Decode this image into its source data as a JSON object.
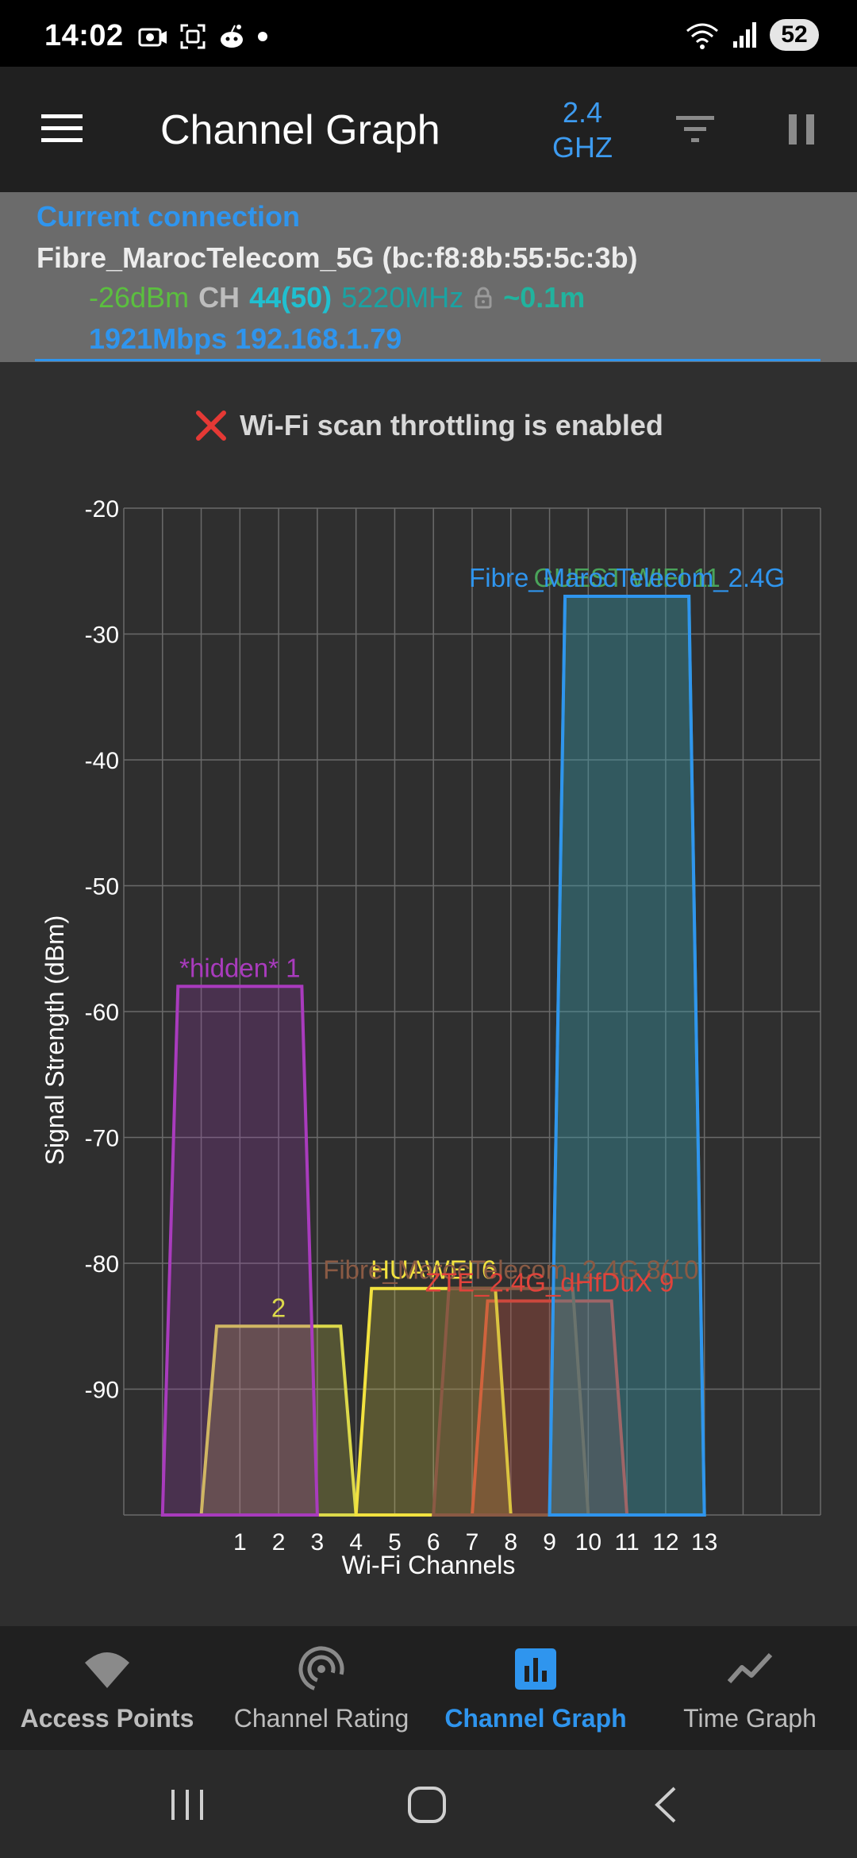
{
  "status_bar": {
    "time": "14:02",
    "battery": "52",
    "left_icons": [
      "camera-icon",
      "screenshot-icon",
      "reddit-icon",
      "dot-icon"
    ],
    "right_icons": [
      "wifi-icon",
      "signal-icon"
    ]
  },
  "app_bar": {
    "title": "Channel Graph",
    "band_line1": "2.4",
    "band_line2": "GHZ",
    "icons": [
      "menu-icon",
      "filter-icon",
      "pause-icon"
    ]
  },
  "current_connection": {
    "heading": "Current connection",
    "ssid_line": "Fibre_MarocTelecom_5G (bc:f8:8b:55:5c:3b)",
    "signal": "-26dBm",
    "ch_label": "CH",
    "channel": "44(50)",
    "frequency": "5220MHz",
    "distance": "~0.1m",
    "rate_ip": "1921Mbps 192.168.1.79"
  },
  "notice": {
    "text": "Wi-Fi scan throttling is enabled"
  },
  "chart_data": {
    "type": "area",
    "xlabel": "Wi-Fi Channels",
    "ylabel": "Signal Strength (dBm)",
    "ylim": [
      -100,
      -20
    ],
    "xlim": [
      -2,
      16
    ],
    "y_ticks": [
      -20,
      -30,
      -40,
      -50,
      -60,
      -70,
      -80,
      -90
    ],
    "x_ticks": [
      1,
      2,
      3,
      4,
      5,
      6,
      7,
      8,
      9,
      10,
      11,
      12,
      13
    ],
    "grid": true,
    "series": [
      {
        "name": "*hidden* 1",
        "channel": 1,
        "signal": -58,
        "color": "#a93bbd"
      },
      {
        "name": "2",
        "channel": 2,
        "signal": -85,
        "color": "#dcd94a"
      },
      {
        "name": "HUAWEI 6",
        "channel": 6,
        "signal": -82,
        "color": "#f2e23f"
      },
      {
        "name": "Fibre_MarocTelecom_2.4G 8(10",
        "channel": 8,
        "signal": -82,
        "color": "#8a5a44"
      },
      {
        "name": "ZTE_2.4G_dHfDuX 9",
        "channel": 9,
        "signal": -83,
        "color": "#e0433b"
      },
      {
        "name": "GUEST WIFI 11",
        "channel": 11,
        "signal": -27,
        "color": "#4aa45a"
      },
      {
        "name": "Fibre_MarocTelecom_2.4G",
        "channel": 11,
        "signal": -27,
        "color": "#2f95ee"
      }
    ]
  },
  "bottom_nav": {
    "items": [
      {
        "label": "Access Points",
        "icon": "wifi-icon",
        "active": false
      },
      {
        "label": "Channel Rating",
        "icon": "radar-icon",
        "active": false
      },
      {
        "label": "Channel Graph",
        "icon": "bar-chart-icon",
        "active": true
      },
      {
        "label": "Time Graph",
        "icon": "line-chart-icon",
        "active": false
      }
    ]
  },
  "system_nav": {
    "icons": [
      "recents-icon",
      "home-icon",
      "back-icon"
    ]
  },
  "colors": {
    "accent": "#2f95ee",
    "signal_green": "#5bbf3f",
    "channel_cyan": "#20c0d0",
    "freq_teal": "#1aa3a3",
    "distance_teal": "#21b39e",
    "error_red": "#e53935"
  }
}
